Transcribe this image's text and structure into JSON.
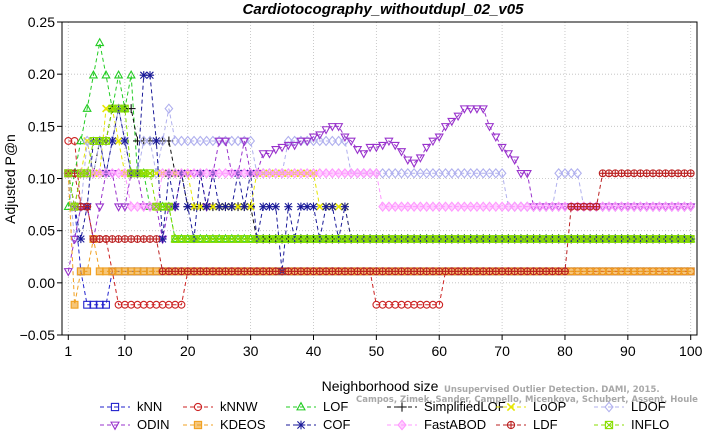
{
  "chart_data": {
    "type": "line",
    "title": "Cardiotocography_withoutdupl_02_v05",
    "xlabel": "Neighborhood size",
    "ylabel": "Adjusted P@n",
    "xlim": [
      0,
      101
    ],
    "ylim": [
      -0.05,
      0.25
    ],
    "xticks": [
      1,
      10,
      20,
      30,
      40,
      50,
      60,
      70,
      80,
      90,
      100
    ],
    "yticks": [
      -0.05,
      0.0,
      0.05,
      0.1,
      0.15,
      0.2,
      0.25
    ],
    "ytick_labels": [
      "−0.05",
      "0.00",
      "0.05",
      "0.10",
      "0.15",
      "0.20",
      "0.25"
    ],
    "legend_position": "bottom",
    "credit_lines": [
      "Unsupervised Outlier Detection. DAMI, 2015.",
      "Campos, Zimek, Sander, Campello, Micenkova, Schubert, Assent, Houle"
    ],
    "series": [
      {
        "name": "kNN",
        "color": "#2222cc",
        "marker": "square",
        "points": [
          [
            1,
            0.105
          ],
          [
            2,
            0.073
          ],
          [
            3,
            0.011
          ],
          [
            4,
            -0.021
          ],
          [
            5,
            -0.021
          ],
          [
            6,
            -0.021
          ],
          [
            7,
            -0.021
          ],
          [
            8,
            0.011
          ],
          [
            100,
            0.011
          ]
        ]
      },
      {
        "name": "kNNW",
        "color": "#cc2222",
        "marker": "circle",
        "points": [
          [
            1,
            0.136
          ],
          [
            2,
            0.136
          ],
          [
            3,
            0.073
          ],
          [
            4,
            0.073
          ],
          [
            5,
            0.042
          ],
          [
            6,
            0.042
          ],
          [
            7,
            0.042
          ],
          [
            8,
            0.011
          ],
          [
            9,
            -0.021
          ],
          [
            19,
            -0.021
          ],
          [
            20,
            0.011
          ],
          [
            49,
            0.011
          ],
          [
            50,
            -0.021
          ],
          [
            60,
            -0.021
          ],
          [
            61,
            0.011
          ],
          [
            100,
            0.011
          ]
        ]
      },
      {
        "name": "LOF",
        "color": "#22cc22",
        "marker": "triangle-up",
        "points": [
          [
            1,
            0.073
          ],
          [
            2,
            0.105
          ],
          [
            3,
            0.136
          ],
          [
            4,
            0.167
          ],
          [
            5,
            0.199
          ],
          [
            6,
            0.23
          ],
          [
            7,
            0.199
          ],
          [
            8,
            0.167
          ],
          [
            9,
            0.199
          ],
          [
            10,
            0.167
          ],
          [
            11,
            0.199
          ],
          [
            12,
            0.105
          ],
          [
            13,
            0.105
          ],
          [
            14,
            0.073
          ],
          [
            15,
            0.073
          ],
          [
            16,
            0.073
          ],
          [
            17,
            0.073
          ],
          [
            18,
            0.042
          ],
          [
            100,
            0.042
          ]
        ]
      },
      {
        "name": "SimplifiedLOF",
        "color": "#111111",
        "marker": "plus",
        "points": [
          [
            1,
            0.105
          ],
          [
            2,
            0.073
          ],
          [
            3,
            0.105
          ],
          [
            4,
            0.105
          ],
          [
            5,
            0.105
          ],
          [
            6,
            0.136
          ],
          [
            7,
            0.136
          ],
          [
            8,
            0.167
          ],
          [
            9,
            0.167
          ],
          [
            10,
            0.167
          ],
          [
            11,
            0.167
          ],
          [
            12,
            0.136
          ],
          [
            13,
            0.136
          ],
          [
            14,
            0.136
          ],
          [
            15,
            0.136
          ],
          [
            16,
            0.136
          ],
          [
            17,
            0.136
          ],
          [
            18,
            0.105
          ],
          [
            19,
            0.105
          ],
          [
            20,
            0.073
          ],
          [
            30,
            0.073
          ],
          [
            31,
            0.042
          ],
          [
            100,
            0.042
          ]
        ]
      },
      {
        "name": "LoOP",
        "color": "#e6e600",
        "marker": "x",
        "points": [
          [
            1,
            0.105
          ],
          [
            2,
            0.073
          ],
          [
            3,
            0.105
          ],
          [
            4,
            0.136
          ],
          [
            5,
            0.105
          ],
          [
            6,
            0.105
          ],
          [
            7,
            0.167
          ],
          [
            8,
            0.167
          ],
          [
            9,
            0.136
          ],
          [
            10,
            0.105
          ],
          [
            20,
            0.105
          ],
          [
            21,
            0.073
          ],
          [
            30,
            0.073
          ],
          [
            31,
            0.105
          ],
          [
            40,
            0.105
          ],
          [
            41,
            0.073
          ],
          [
            45,
            0.073
          ],
          [
            46,
            0.042
          ],
          [
            100,
            0.042
          ]
        ]
      },
      {
        "name": "LDOF",
        "color": "#b0b0ee",
        "marker": "diamond",
        "points": [
          [
            1,
            0.105
          ],
          [
            2,
            0.042
          ],
          [
            3,
            0.073
          ],
          [
            4,
            0.136
          ],
          [
            5,
            0.105
          ],
          [
            6,
            0.136
          ],
          [
            7,
            0.105
          ],
          [
            8,
            0.136
          ],
          [
            9,
            0.167
          ],
          [
            10,
            0.136
          ],
          [
            11,
            0.105
          ],
          [
            12,
            0.105
          ],
          [
            13,
            0.136
          ],
          [
            14,
            0.136
          ],
          [
            15,
            0.105
          ],
          [
            16,
            0.136
          ],
          [
            17,
            0.167
          ],
          [
            18,
            0.136
          ],
          [
            30,
            0.136
          ],
          [
            31,
            0.105
          ],
          [
            35,
            0.105
          ],
          [
            36,
            0.136
          ],
          [
            45,
            0.136
          ],
          [
            46,
            0.105
          ],
          [
            70,
            0.105
          ],
          [
            71,
            0.073
          ],
          [
            78,
            0.073
          ],
          [
            79,
            0.105
          ],
          [
            82,
            0.105
          ],
          [
            83,
            0.073
          ],
          [
            100,
            0.073
          ]
        ]
      },
      {
        "name": "ODIN",
        "color": "#9933cc",
        "marker": "triangle-down",
        "points": [
          [
            1,
            0.011
          ],
          [
            2,
            0.042
          ],
          [
            3,
            0.073
          ],
          [
            4,
            0.073
          ],
          [
            5,
            0.042
          ],
          [
            6,
            0.073
          ],
          [
            7,
            0.105
          ],
          [
            8,
            0.105
          ],
          [
            9,
            0.073
          ],
          [
            10,
            0.073
          ],
          [
            11,
            0.105
          ],
          [
            12,
            0.105
          ],
          [
            13,
            0.073
          ],
          [
            14,
            0.073
          ],
          [
            15,
            0.073
          ],
          [
            16,
            0.042
          ],
          [
            17,
            0.073
          ],
          [
            18,
            0.073
          ],
          [
            19,
            0.105
          ],
          [
            20,
            0.105
          ],
          [
            21,
            0.105
          ],
          [
            22,
            0.105
          ],
          [
            23,
            0.073
          ],
          [
            24,
            0.105
          ],
          [
            25,
            0.136
          ],
          [
            26,
            0.136
          ],
          [
            27,
            0.105
          ],
          [
            28,
            0.105
          ],
          [
            29,
            0.136
          ],
          [
            30,
            0.105
          ],
          [
            31,
            0.105
          ],
          [
            32,
            0.124
          ],
          [
            33,
            0.124
          ],
          [
            34,
            0.128
          ],
          [
            35,
            0.13
          ],
          [
            36,
            0.132
          ],
          [
            37,
            0.132
          ],
          [
            38,
            0.136
          ],
          [
            39,
            0.136
          ],
          [
            40,
            0.14
          ],
          [
            41,
            0.142
          ],
          [
            42,
            0.147
          ],
          [
            43,
            0.15
          ],
          [
            44,
            0.15
          ],
          [
            45,
            0.14
          ],
          [
            46,
            0.136
          ],
          [
            47,
            0.128
          ],
          [
            48,
            0.124
          ],
          [
            49,
            0.13
          ],
          [
            50,
            0.13
          ],
          [
            51,
            0.132
          ],
          [
            52,
            0.136
          ],
          [
            53,
            0.132
          ],
          [
            54,
            0.126
          ],
          [
            55,
            0.118
          ],
          [
            56,
            0.115
          ],
          [
            57,
            0.12
          ],
          [
            58,
            0.13
          ],
          [
            59,
            0.136
          ],
          [
            60,
            0.14
          ],
          [
            61,
            0.15
          ],
          [
            62,
            0.155
          ],
          [
            63,
            0.16
          ],
          [
            64,
            0.167
          ],
          [
            65,
            0.167
          ],
          [
            66,
            0.167
          ],
          [
            67,
            0.167
          ],
          [
            68,
            0.15
          ],
          [
            69,
            0.14
          ],
          [
            70,
            0.13
          ],
          [
            71,
            0.124
          ],
          [
            72,
            0.118
          ],
          [
            73,
            0.105
          ],
          [
            74,
            0.105
          ],
          [
            75,
            0.073
          ],
          [
            100,
            0.073
          ]
        ]
      },
      {
        "name": "KDEOS",
        "color": "#f0a020",
        "marker": "square-filled",
        "points": [
          [
            1,
            0.105
          ],
          [
            2,
            -0.021
          ],
          [
            3,
            0.011
          ],
          [
            4,
            0.011
          ],
          [
            5,
            0.042
          ],
          [
            6,
            0.011
          ],
          [
            7,
            0.011
          ],
          [
            100,
            0.011
          ]
        ]
      },
      {
        "name": "COF",
        "color": "#1a1a99",
        "marker": "star",
        "points": [
          [
            1,
            0.105
          ],
          [
            2,
            0.073
          ],
          [
            3,
            0.042
          ],
          [
            4,
            0.073
          ],
          [
            5,
            0.136
          ],
          [
            6,
            0.136
          ],
          [
            7,
            0.105
          ],
          [
            8,
            0.136
          ],
          [
            9,
            0.167
          ],
          [
            10,
            0.136
          ],
          [
            11,
            0.105
          ],
          [
            12,
            0.105
          ],
          [
            13,
            0.199
          ],
          [
            14,
            0.199
          ],
          [
            15,
            0.136
          ],
          [
            16,
            0.042
          ],
          [
            17,
            0.105
          ],
          [
            18,
            0.073
          ],
          [
            19,
            0.105
          ],
          [
            20,
            0.073
          ],
          [
            21,
            0.042
          ],
          [
            22,
            0.105
          ],
          [
            23,
            0.073
          ],
          [
            24,
            0.105
          ],
          [
            25,
            0.073
          ],
          [
            26,
            0.073
          ],
          [
            27,
            0.073
          ],
          [
            28,
            0.105
          ],
          [
            29,
            0.073
          ],
          [
            30,
            0.105
          ],
          [
            31,
            0.042
          ],
          [
            32,
            0.073
          ],
          [
            33,
            0.073
          ],
          [
            34,
            0.073
          ],
          [
            35,
            0.011
          ],
          [
            36,
            0.073
          ],
          [
            37,
            0.042
          ],
          [
            38,
            0.073
          ],
          [
            39,
            0.073
          ],
          [
            40,
            0.073
          ],
          [
            41,
            0.042
          ],
          [
            42,
            0.073
          ],
          [
            43,
            0.073
          ],
          [
            44,
            0.042
          ],
          [
            45,
            0.073
          ],
          [
            46,
            0.042
          ],
          [
            100,
            0.042
          ]
        ]
      },
      {
        "name": "FastABOD",
        "color": "#ff99ff",
        "marker": "diamond-filled",
        "points": [
          [
            1,
            0.105
          ],
          [
            2,
            0.073
          ],
          [
            3,
            0.105
          ],
          [
            4,
            0.105
          ],
          [
            10,
            0.105
          ],
          [
            11,
            0.073
          ],
          [
            15,
            0.073
          ],
          [
            16,
            0.105
          ],
          [
            50,
            0.105
          ],
          [
            51,
            0.073
          ],
          [
            100,
            0.073
          ]
        ]
      },
      {
        "name": "LDF",
        "color": "#bb2222",
        "marker": "circle-plus",
        "points": [
          [
            1,
            0.105
          ],
          [
            2,
            0.105
          ],
          [
            3,
            0.073
          ],
          [
            4,
            0.073
          ],
          [
            5,
            0.042
          ],
          [
            6,
            0.042
          ],
          [
            15,
            0.042
          ],
          [
            16,
            0.011
          ],
          [
            80,
            0.011
          ],
          [
            81,
            0.073
          ],
          [
            85,
            0.073
          ],
          [
            86,
            0.105
          ],
          [
            100,
            0.105
          ]
        ]
      },
      {
        "name": "INFLO",
        "color": "#88dd00",
        "marker": "square-x",
        "points": [
          [
            1,
            0.105
          ],
          [
            2,
            0.073
          ],
          [
            3,
            0.105
          ],
          [
            4,
            0.105
          ],
          [
            5,
            0.136
          ],
          [
            6,
            0.136
          ],
          [
            7,
            0.136
          ],
          [
            8,
            0.167
          ],
          [
            9,
            0.167
          ],
          [
            10,
            0.167
          ],
          [
            11,
            0.105
          ],
          [
            12,
            0.105
          ],
          [
            15,
            0.073
          ],
          [
            16,
            0.073
          ],
          [
            17,
            0.073
          ],
          [
            18,
            0.042
          ],
          [
            100,
            0.042
          ]
        ]
      }
    ]
  }
}
